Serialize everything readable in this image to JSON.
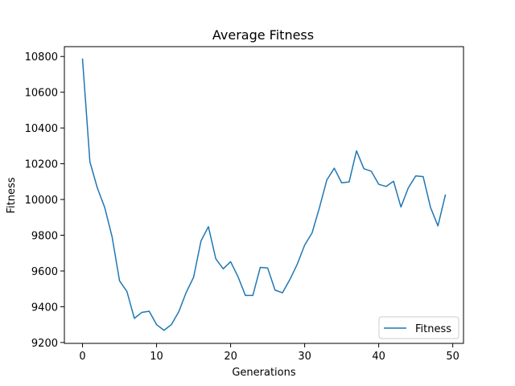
{
  "chart_data": {
    "type": "line",
    "title": "Average Fitness",
    "xlabel": "Generations",
    "ylabel": "Fitness",
    "xlim": [
      -2.45,
      51.45
    ],
    "ylim": [
      9195,
      10855
    ],
    "xticks": [
      0,
      10,
      20,
      30,
      40,
      50
    ],
    "yticks": [
      9200,
      9400,
      9600,
      9800,
      10000,
      10200,
      10400,
      10600,
      10800
    ],
    "grid": false,
    "legend": {
      "placement": "lower-right",
      "entries": [
        "Fitness"
      ]
    },
    "series": [
      {
        "name": "Fitness",
        "color": "#1f77b4",
        "x": [
          0,
          1,
          2,
          3,
          4,
          5,
          6,
          7,
          8,
          9,
          10,
          11,
          12,
          13,
          14,
          15,
          16,
          17,
          18,
          19,
          20,
          21,
          22,
          23,
          24,
          25,
          26,
          27,
          28,
          29,
          30,
          31,
          32,
          33,
          34,
          35,
          36,
          37,
          38,
          39,
          40,
          41,
          42,
          43,
          44,
          45,
          46,
          47,
          48,
          49
        ],
        "values": [
          10785,
          10210,
          10065,
          9955,
          9790,
          9545,
          9485,
          9335,
          9368,
          9375,
          9300,
          9268,
          9300,
          9372,
          9480,
          9565,
          9768,
          9848,
          9668,
          9612,
          9652,
          9568,
          9463,
          9463,
          9620,
          9617,
          9493,
          9478,
          9552,
          9638,
          9745,
          9813,
          9955,
          10110,
          10175,
          10093,
          10098,
          10272,
          10172,
          10158,
          10085,
          10073,
          10102,
          9958,
          10065,
          10132,
          10128,
          9955,
          9852,
          10025
        ]
      }
    ]
  }
}
